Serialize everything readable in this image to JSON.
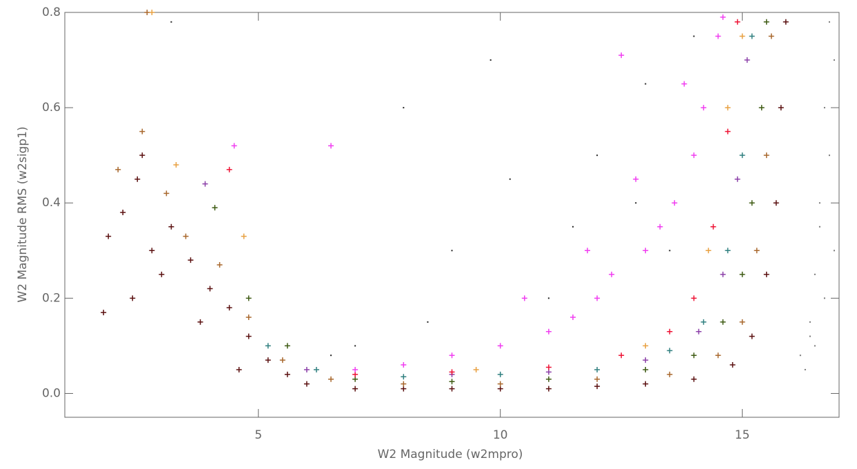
{
  "chart_data": {
    "type": "scatter",
    "xlabel": "W2 Magnitude (w2mpro)",
    "ylabel": "W2 Magnitude RMS (w2sigp1)",
    "xlim": [
      1,
      17
    ],
    "ylim": [
      -0.05,
      0.8
    ],
    "xticks": [
      5,
      10,
      15
    ],
    "yticks": [
      {
        "value": 0,
        "label": "0.0"
      },
      {
        "value": 0.2,
        "label": "0.2"
      },
      {
        "value": 0.4,
        "label": "0.4"
      },
      {
        "value": 0.6,
        "label": "0.6"
      },
      {
        "value": 0.8,
        "label": "0.8"
      }
    ],
    "series": [
      {
        "color": "#777777",
        "marker": "dot",
        "x": [
          16.3,
          16.5,
          16.7,
          16.9,
          16.4,
          16.6,
          16.8,
          16.5,
          16.7,
          16.9,
          16.6,
          16.8,
          16.2,
          16.4
        ],
        "values": [
          0.05,
          0.1,
          0.2,
          0.3,
          0.15,
          0.4,
          0.5,
          0.25,
          0.6,
          0.7,
          0.35,
          0.78,
          0.08,
          0.12
        ]
      },
      {
        "color": "#222222",
        "marker": "dot",
        "x": [
          7,
          8.5,
          9,
          10.2,
          11,
          12,
          13,
          6.5,
          9.8,
          11.5,
          12.8,
          13.5,
          14,
          3.2,
          8
        ],
        "values": [
          0.1,
          0.15,
          0.3,
          0.45,
          0.2,
          0.5,
          0.65,
          0.08,
          0.7,
          0.35,
          0.4,
          0.3,
          0.75,
          0.78,
          0.6
        ]
      },
      {
        "color": "#5a0f0f",
        "marker": "plus",
        "x": [
          1.9,
          2.2,
          2.5,
          2.8,
          3.2,
          3.6,
          4.0,
          4.4,
          4.8,
          5.2,
          5.6,
          6,
          7,
          8,
          9,
          10,
          11,
          12,
          13,
          14,
          14.8,
          15.2,
          15.5,
          15.7,
          15.8,
          15.9,
          2.4,
          3.0,
          3.8,
          4.6,
          1.8,
          2.6
        ],
        "values": [
          0.33,
          0.38,
          0.45,
          0.3,
          0.35,
          0.28,
          0.22,
          0.18,
          0.12,
          0.07,
          0.04,
          0.02,
          0.01,
          0.01,
          0.01,
          0.01,
          0.01,
          0.015,
          0.02,
          0.03,
          0.06,
          0.12,
          0.25,
          0.4,
          0.6,
          0.78,
          0.2,
          0.25,
          0.15,
          0.05,
          0.17,
          0.5
        ]
      },
      {
        "color": "#a8672c",
        "marker": "plus",
        "x": [
          2.1,
          2.6,
          3.1,
          3.5,
          4.2,
          4.8,
          5.5,
          6.5,
          8,
          10,
          12,
          13.5,
          14.5,
          15,
          15.3,
          15.5,
          15.6,
          2.7
        ],
        "values": [
          0.47,
          0.55,
          0.42,
          0.33,
          0.27,
          0.16,
          0.07,
          0.03,
          0.02,
          0.02,
          0.03,
          0.04,
          0.08,
          0.15,
          0.3,
          0.5,
          0.75,
          0.8
        ]
      },
      {
        "color": "#3d5a12",
        "marker": "plus",
        "x": [
          4.1,
          4.8,
          5.6,
          7,
          9,
          11,
          13,
          14,
          14.6,
          15,
          15.2,
          15.4,
          15.5
        ],
        "values": [
          0.39,
          0.2,
          0.1,
          0.03,
          0.025,
          0.03,
          0.05,
          0.08,
          0.15,
          0.25,
          0.4,
          0.6,
          0.78
        ]
      },
      {
        "color": "#2f7f7f",
        "marker": "plus",
        "x": [
          5.2,
          6.2,
          8,
          10,
          12,
          13.5,
          14.2,
          14.7,
          15,
          15.2
        ],
        "values": [
          0.1,
          0.05,
          0.035,
          0.04,
          0.05,
          0.09,
          0.15,
          0.3,
          0.5,
          0.75
        ]
      },
      {
        "color": "#8b3fa8",
        "marker": "plus",
        "x": [
          3.9,
          6,
          9,
          11,
          13,
          14.1,
          14.6,
          14.9,
          15.1
        ],
        "values": [
          0.44,
          0.05,
          0.04,
          0.045,
          0.07,
          0.13,
          0.25,
          0.45,
          0.7
        ]
      },
      {
        "color": "#ee1133",
        "marker": "plus",
        "x": [
          4.4,
          7,
          9,
          11,
          12.5,
          13.5,
          14,
          14.4,
          14.7,
          14.9
        ],
        "values": [
          0.47,
          0.04,
          0.045,
          0.055,
          0.08,
          0.13,
          0.2,
          0.35,
          0.55,
          0.78
        ]
      },
      {
        "color": "#f03cf0",
        "marker": "plus",
        "x": [
          6.5,
          7,
          8,
          9,
          10,
          11,
          11.5,
          12,
          12.3,
          12.5,
          13,
          13.3,
          13.6,
          14,
          14.2,
          14.5,
          4.5,
          10.5,
          11.8,
          12.8,
          13.8,
          14.6
        ],
        "values": [
          0.52,
          0.05,
          0.06,
          0.08,
          0.1,
          0.13,
          0.16,
          0.2,
          0.25,
          0.71,
          0.3,
          0.35,
          0.4,
          0.5,
          0.6,
          0.75,
          0.52,
          0.2,
          0.3,
          0.45,
          0.65,
          0.79
        ]
      },
      {
        "color": "#e8a040",
        "marker": "plus",
        "x": [
          2.8,
          3.3,
          4.7,
          9.5,
          13,
          14.3,
          14.7,
          15
        ],
        "values": [
          0.8,
          0.48,
          0.33,
          0.05,
          0.1,
          0.3,
          0.6,
          0.75
        ]
      }
    ]
  }
}
